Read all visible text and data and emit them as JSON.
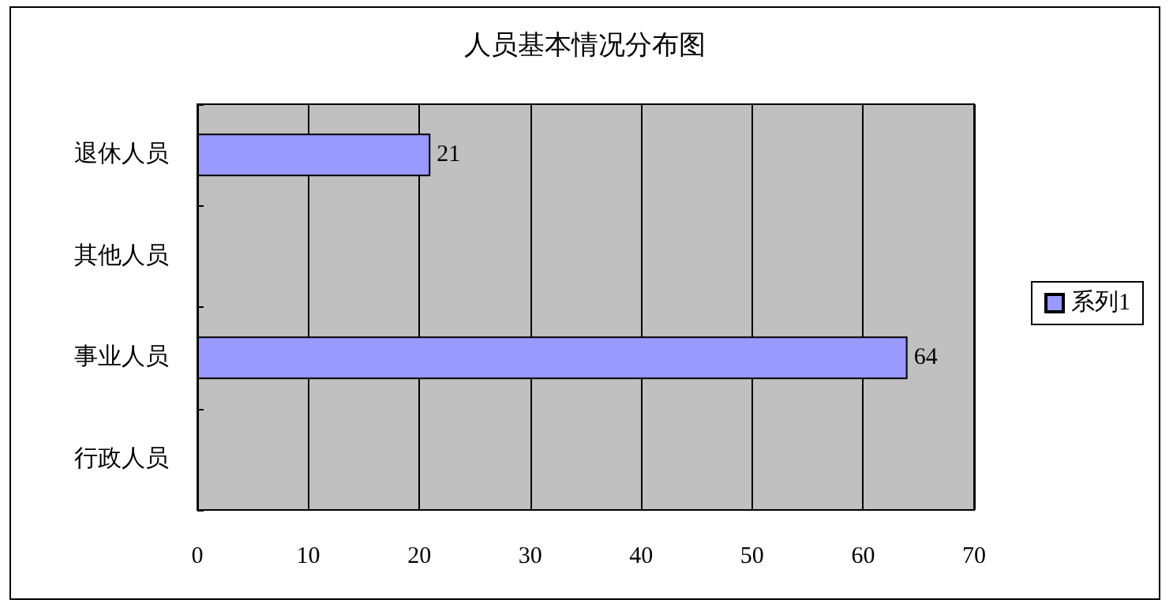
{
  "chart_data": {
    "type": "bar",
    "title": "人员基本情况分布图",
    "orientation": "horizontal",
    "categories": [
      "退休人员",
      "其他人员",
      "事业人员",
      "行政人员"
    ],
    "series": [
      {
        "name": "系列1",
        "color": "#9999ff",
        "values": [
          21,
          null,
          64,
          null
        ]
      }
    ],
    "xlim": [
      0,
      70
    ],
    "xticks": [
      0,
      10,
      20,
      30,
      40,
      50,
      60,
      70
    ],
    "grid": "x",
    "legend": "right",
    "data_labels": true
  }
}
